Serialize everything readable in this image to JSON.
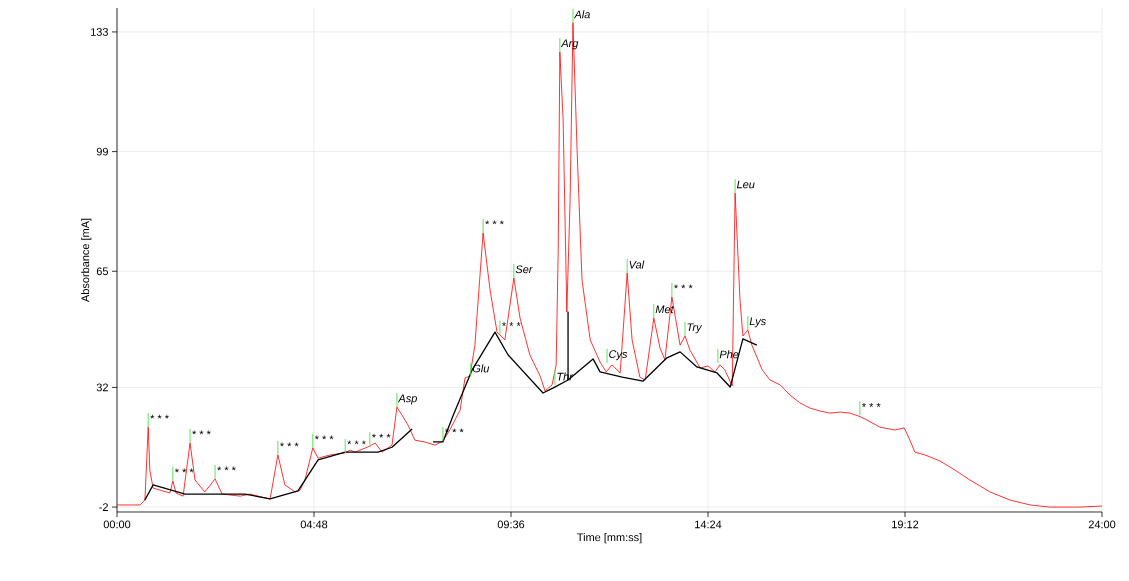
{
  "chart_data": {
    "type": "line",
    "xlabel": "Time [mm:ss]",
    "ylabel": "Absorbance [mA]",
    "xlim": [
      0,
      24
    ],
    "ylim": [
      -3.4,
      139.8
    ],
    "xticks": [
      {
        "value": 0,
        "label": "00:00"
      },
      {
        "value": 4.8,
        "label": "04:48"
      },
      {
        "value": 9.6,
        "label": "09:36"
      },
      {
        "value": 14.4,
        "label": "14:24"
      },
      {
        "value": 19.2,
        "label": "19:12"
      },
      {
        "value": 24,
        "label": "24:00"
      }
    ],
    "yticks": [
      -2,
      32,
      65,
      99,
      133
    ],
    "grid": true,
    "series": [
      {
        "color": "#ff0000",
        "x": [
          0,
          0.56,
          0.68,
          0.76,
          0.8,
          0.88,
          1.05,
          1.29,
          1.36,
          1.44,
          1.61,
          1.78,
          1.9,
          2.14,
          2.39,
          2.56,
          3.0,
          3.24,
          3.61,
          3.73,
          3.92,
          4.09,
          4.34,
          4.46,
          4.58,
          4.77,
          4.9,
          5.19,
          5.56,
          5.68,
          5.8,
          6.16,
          6.29,
          6.46,
          6.7,
          6.82,
          6.94,
          7.09,
          7.26,
          7.5,
          7.75,
          7.94,
          8.11,
          8.36,
          8.48,
          8.6,
          8.72,
          8.92,
          9.09,
          9.26,
          9.45,
          9.67,
          9.82,
          10.06,
          10.31,
          10.43,
          10.6,
          10.7,
          10.75,
          10.79,
          10.87,
          10.96,
          11.04,
          11.11,
          11.21,
          11.33,
          11.53,
          11.77,
          11.92,
          12.06,
          12.26,
          12.43,
          12.55,
          12.74,
          12.87,
          13.08,
          13.23,
          13.35,
          13.52,
          13.72,
          13.84,
          13.96,
          14.21,
          14.4,
          14.57,
          14.69,
          14.81,
          14.99,
          15.06,
          15.18,
          15.25,
          15.37,
          15.47,
          15.62,
          15.72,
          15.91,
          16.16,
          16.4,
          16.64,
          16.89,
          17.13,
          17.37,
          17.62,
          17.86,
          18.06,
          18.23,
          18.59,
          18.96,
          19.18,
          19.32,
          19.44,
          19.69,
          20.05,
          20.42,
          20.78,
          21.27,
          21.76,
          22.25,
          22.73,
          23.46,
          24.0
        ],
        "values": [
          -1.4,
          -1.4,
          0.0,
          20.7,
          8.5,
          3.4,
          2.8,
          2.0,
          5.4,
          2.0,
          1.1,
          16.2,
          5.7,
          2.3,
          6.0,
          1.7,
          1.1,
          1.7,
          0.6,
          0.3,
          12.8,
          4.3,
          2.3,
          2.8,
          5.7,
          14.8,
          11.9,
          12.8,
          13.4,
          14.2,
          13.6,
          15.3,
          16.2,
          13.6,
          15.6,
          26.4,
          24.2,
          21.3,
          17.0,
          16.5,
          15.6,
          16.8,
          19.9,
          25.6,
          34.7,
          35.2,
          44.0,
          75.9,
          59.7,
          47.7,
          45.5,
          63.1,
          51.7,
          41.2,
          35.2,
          31.0,
          32.7,
          38.4,
          71.0,
          127.3,
          108.0,
          53.4,
          85.3,
          135.6,
          99.5,
          62.5,
          45.5,
          39.2,
          36.4,
          38.4,
          36.1,
          64.5,
          45.5,
          34.9,
          34.1,
          51.7,
          43.2,
          39.8,
          57.7,
          44.0,
          46.6,
          42.6,
          37.5,
          38.1,
          36.4,
          38.4,
          37.0,
          32.4,
          87.2,
          56.8,
          46.6,
          48.3,
          44.0,
          39.8,
          37.0,
          34.1,
          32.7,
          29.8,
          27.6,
          26.1,
          25.3,
          24.7,
          25.0,
          24.7,
          23.9,
          23.0,
          20.7,
          19.9,
          20.5,
          17.0,
          13.6,
          12.8,
          11.1,
          8.5,
          5.7,
          2.3,
          0.0,
          -1.4,
          -2.0,
          -2.0,
          -1.7
        ]
      },
      {
        "color": "#000000",
        "x": [
          0.68,
          0.88,
          1.66,
          3.12,
          3.73,
          4.41,
          4.9,
          5.56,
          6.36,
          6.7,
          7.19,
          7.5,
          7.7,
          7.94,
          8.19,
          8.65,
          9.21,
          9.53,
          10.38,
          10.62,
          10.99,
          10.99,
          10.99,
          11.6,
          11.77,
          12.31,
          12.82,
          13.4,
          13.72,
          14.13,
          14.62,
          14.94,
          15.25,
          15.59
        ],
        "values": [
          0.0,
          4.3,
          1.7,
          1.7,
          0.3,
          2.6,
          11.4,
          13.6,
          13.6,
          15.0,
          20.2,
          null,
          16.5,
          16.5,
          24.0,
          36.9,
          47.7,
          41.2,
          30.4,
          31.8,
          34.1,
          53.4,
          34.1,
          40.1,
          36.4,
          34.9,
          33.8,
          40.4,
          42.1,
          37.8,
          36.1,
          32.1,
          45.8,
          44.0
        ]
      }
    ],
    "annotations": [
      {
        "text": "* * *",
        "x": 0.76,
        "y": 20.7
      },
      {
        "text": "* * *",
        "x": 1.36,
        "y": 5.4
      },
      {
        "text": "* * *",
        "x": 1.78,
        "y": 16.2
      },
      {
        "text": "* * *",
        "x": 2.39,
        "y": 6.0
      },
      {
        "text": "* * *",
        "x": 3.92,
        "y": 12.8
      },
      {
        "text": "* * *",
        "x": 4.77,
        "y": 14.8
      },
      {
        "text": "* * *",
        "x": 5.56,
        "y": 13.4
      },
      {
        "text": "* * *",
        "x": 6.16,
        "y": 15.3
      },
      {
        "text": "Asp",
        "x": 6.82,
        "y": 26.4
      },
      {
        "text": "* * *",
        "x": 7.94,
        "y": 16.8
      },
      {
        "text": "Glu",
        "x": 8.62,
        "y": 35.0
      },
      {
        "text": "* * *",
        "x": 8.92,
        "y": 75.9
      },
      {
        "text": "* * *",
        "x": 9.33,
        "y": 47.0
      },
      {
        "text": "Ser",
        "x": 9.67,
        "y": 63.1
      },
      {
        "text": "Thr",
        "x": 10.67,
        "y": 32.7
      },
      {
        "text": "Arg",
        "x": 10.79,
        "y": 127.3
      },
      {
        "text": "Ala",
        "x": 11.11,
        "y": 135.6
      },
      {
        "text": "Cys",
        "x": 11.94,
        "y": 39.0
      },
      {
        "text": "Val",
        "x": 12.43,
        "y": 64.5
      },
      {
        "text": "Met",
        "x": 13.08,
        "y": 51.7
      },
      {
        "text": "* * *",
        "x": 13.52,
        "y": 57.7
      },
      {
        "text": "Try",
        "x": 13.84,
        "y": 46.6
      },
      {
        "text": "Phe",
        "x": 14.64,
        "y": 39.0
      },
      {
        "text": "Leu",
        "x": 15.06,
        "y": 87.2
      },
      {
        "text": "Lys",
        "x": 15.37,
        "y": 48.3
      },
      {
        "text": "* * *",
        "x": 18.1,
        "y": 24.0
      }
    ]
  }
}
